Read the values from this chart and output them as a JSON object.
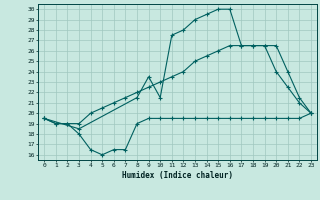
{
  "title": "",
  "xlabel": "Humidex (Indice chaleur)",
  "xlim": [
    -0.5,
    23.5
  ],
  "ylim": [
    15.5,
    30.5
  ],
  "xticks": [
    0,
    1,
    2,
    3,
    4,
    5,
    6,
    7,
    8,
    9,
    10,
    11,
    12,
    13,
    14,
    15,
    16,
    17,
    18,
    19,
    20,
    21,
    22,
    23
  ],
  "yticks": [
    16,
    17,
    18,
    19,
    20,
    21,
    22,
    23,
    24,
    25,
    26,
    27,
    28,
    29,
    30
  ],
  "bg_color": "#c8e8e0",
  "grid_color": "#a0c8c0",
  "line_color": "#006060",
  "line1_x": [
    0,
    1,
    2,
    3,
    4,
    5,
    6,
    7,
    8,
    9,
    10,
    11,
    12,
    13,
    14,
    15,
    16,
    17,
    18,
    19,
    20,
    21,
    22,
    23
  ],
  "line1_y": [
    19.5,
    19.0,
    19.0,
    18.0,
    16.5,
    16.0,
    16.5,
    16.5,
    19.0,
    19.5,
    19.5,
    19.5,
    19.5,
    19.5,
    19.5,
    19.5,
    19.5,
    19.5,
    19.5,
    19.5,
    19.5,
    19.5,
    19.5,
    20.0
  ],
  "line2_x": [
    0,
    3,
    8,
    9,
    10,
    11,
    12,
    13,
    14,
    15,
    16,
    17,
    18,
    19,
    20,
    21,
    22,
    23
  ],
  "line2_y": [
    19.5,
    18.5,
    21.5,
    23.5,
    21.5,
    27.5,
    28.0,
    29.0,
    29.5,
    30.0,
    30.0,
    26.5,
    26.5,
    26.5,
    26.5,
    24.0,
    21.5,
    20.0
  ],
  "line3_x": [
    0,
    1,
    2,
    3,
    4,
    5,
    6,
    7,
    8,
    9,
    10,
    11,
    12,
    13,
    14,
    15,
    16,
    17,
    18,
    19,
    20,
    21,
    22,
    23
  ],
  "line3_y": [
    19.5,
    19.0,
    19.0,
    19.0,
    20.0,
    20.5,
    21.0,
    21.5,
    22.0,
    22.5,
    23.0,
    23.5,
    24.0,
    25.0,
    25.5,
    26.0,
    26.5,
    26.5,
    26.5,
    26.5,
    24.0,
    22.5,
    21.0,
    20.0
  ]
}
